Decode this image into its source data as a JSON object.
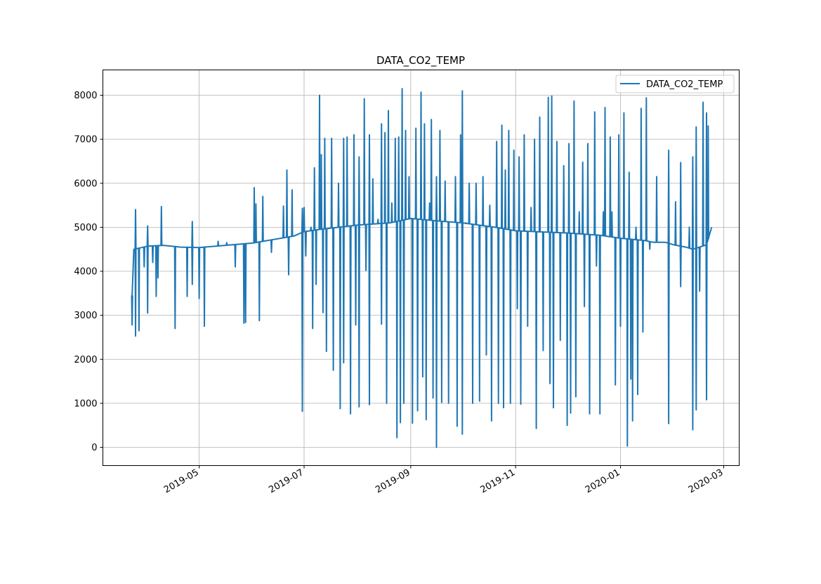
{
  "chart_data": {
    "type": "line",
    "title": "DATA_CO2_TEMP",
    "xlabel": "",
    "ylabel": "",
    "grid": true,
    "legend": {
      "entries": [
        "DATA_CO2_TEMP"
      ],
      "placement": "top-right"
    },
    "xlim": [
      "2019-03-06",
      "2020-03-10"
    ],
    "ylim": [
      -415,
      8575
    ],
    "x_ticks": [
      {
        "date": "2019-05-01",
        "label": "2019-05"
      },
      {
        "date": "2019-07-01",
        "label": "2019-07"
      },
      {
        "date": "2019-09-01",
        "label": "2019-09"
      },
      {
        "date": "2019-11-01",
        "label": "2019-11"
      },
      {
        "date": "2020-01-01",
        "label": "2020-01"
      },
      {
        "date": "2020-03-01",
        "label": "2020-03"
      }
    ],
    "y_ticks": [
      0,
      1000,
      2000,
      3000,
      4000,
      5000,
      6000,
      7000,
      8000
    ],
    "series": [
      {
        "name": "DATA_CO2_TEMP",
        "color": "#1f77b4",
        "baseline": [
          [
            "2019-03-23",
            3450
          ],
          [
            "2019-03-24",
            4500
          ],
          [
            "2019-04-01",
            4570
          ],
          [
            "2019-04-10",
            4590
          ],
          [
            "2019-04-20",
            4550
          ],
          [
            "2019-05-01",
            4540
          ],
          [
            "2019-06-01",
            4640
          ],
          [
            "2019-06-25",
            4800
          ],
          [
            "2019-07-01",
            4900
          ],
          [
            "2019-07-10",
            4950
          ],
          [
            "2019-08-01",
            5050
          ],
          [
            "2019-08-20",
            5100
          ],
          [
            "2019-09-01",
            5200
          ],
          [
            "2019-09-15",
            5150
          ],
          [
            "2019-10-01",
            5100
          ],
          [
            "2019-10-20",
            5000
          ],
          [
            "2019-11-01",
            4920
          ],
          [
            "2019-12-01",
            4870
          ],
          [
            "2019-12-20",
            4820
          ],
          [
            "2020-01-01",
            4750
          ],
          [
            "2020-01-15",
            4700
          ],
          [
            "2020-01-20",
            4660
          ],
          [
            "2020-01-27",
            4660
          ],
          [
            "2020-02-01",
            4600
          ],
          [
            "2020-02-08",
            4550
          ],
          [
            "2020-02-12",
            4500
          ],
          [
            "2020-02-20",
            4600
          ],
          [
            "2020-02-23",
            5000
          ]
        ],
        "spikes": [
          [
            "2019-03-23",
            2780
          ],
          [
            "2019-03-25",
            5400
          ],
          [
            "2019-03-25",
            2530
          ],
          [
            "2019-03-27",
            2650
          ],
          [
            "2019-03-30",
            4100
          ],
          [
            "2019-04-01",
            5030
          ],
          [
            "2019-04-01",
            3050
          ],
          [
            "2019-04-04",
            4200
          ],
          [
            "2019-04-06",
            3430
          ],
          [
            "2019-04-07",
            3850
          ],
          [
            "2019-04-09",
            5470
          ],
          [
            "2019-04-17",
            2700
          ],
          [
            "2019-04-24",
            3430
          ],
          [
            "2019-04-27",
            5130
          ],
          [
            "2019-04-27",
            3700
          ],
          [
            "2019-05-01",
            3380
          ],
          [
            "2019-05-04",
            2750
          ],
          [
            "2019-05-12",
            4680
          ],
          [
            "2019-05-17",
            4650
          ],
          [
            "2019-05-22",
            4100
          ],
          [
            "2019-05-27",
            2820
          ],
          [
            "2019-05-28",
            2840
          ],
          [
            "2019-06-02",
            5900
          ],
          [
            "2019-06-03",
            5530
          ],
          [
            "2019-06-05",
            2880
          ],
          [
            "2019-06-07",
            5700
          ],
          [
            "2019-06-12",
            4430
          ],
          [
            "2019-06-19",
            5480
          ],
          [
            "2019-06-21",
            6300
          ],
          [
            "2019-06-22",
            3920
          ],
          [
            "2019-06-24",
            5850
          ],
          [
            "2019-06-30",
            5430
          ],
          [
            "2019-06-30",
            820
          ],
          [
            "2019-07-01",
            5450
          ],
          [
            "2019-07-02",
            4350
          ],
          [
            "2019-07-05",
            5000
          ],
          [
            "2019-07-06",
            2700
          ],
          [
            "2019-07-07",
            6350
          ],
          [
            "2019-07-08",
            3700
          ],
          [
            "2019-07-10",
            8000
          ],
          [
            "2019-07-11",
            6650
          ],
          [
            "2019-07-12",
            3060
          ],
          [
            "2019-07-13",
            7020
          ],
          [
            "2019-07-14",
            2180
          ],
          [
            "2019-07-17",
            7020
          ],
          [
            "2019-07-18",
            1750
          ],
          [
            "2019-07-21",
            6000
          ],
          [
            "2019-07-22",
            880
          ],
          [
            "2019-07-24",
            7020
          ],
          [
            "2019-07-24",
            1920
          ],
          [
            "2019-07-26",
            7050
          ],
          [
            "2019-07-28",
            760
          ],
          [
            "2019-07-30",
            7100
          ],
          [
            "2019-07-31",
            2780
          ],
          [
            "2019-08-02",
            6600
          ],
          [
            "2019-08-02",
            920
          ],
          [
            "2019-08-05",
            7920
          ],
          [
            "2019-08-06",
            4020
          ],
          [
            "2019-08-08",
            7100
          ],
          [
            "2019-08-08",
            970
          ],
          [
            "2019-08-10",
            6100
          ],
          [
            "2019-08-13",
            5180
          ],
          [
            "2019-08-15",
            7350
          ],
          [
            "2019-08-15",
            2800
          ],
          [
            "2019-08-17",
            7150
          ],
          [
            "2019-08-18",
            1000
          ],
          [
            "2019-08-19",
            7650
          ],
          [
            "2019-08-21",
            5550
          ],
          [
            "2019-08-23",
            7020
          ],
          [
            "2019-08-24",
            220
          ],
          [
            "2019-08-25",
            7050
          ],
          [
            "2019-08-26",
            560
          ],
          [
            "2019-08-27",
            8150
          ],
          [
            "2019-08-28",
            1000
          ],
          [
            "2019-08-29",
            7200
          ],
          [
            "2019-08-31",
            6150
          ],
          [
            "2019-09-02",
            550
          ],
          [
            "2019-09-04",
            7250
          ],
          [
            "2019-09-05",
            830
          ],
          [
            "2019-09-07",
            8070
          ],
          [
            "2019-09-08",
            1600
          ],
          [
            "2019-09-09",
            7350
          ],
          [
            "2019-09-10",
            630
          ],
          [
            "2019-09-12",
            5550
          ],
          [
            "2019-09-13",
            7450
          ],
          [
            "2019-09-14",
            1120
          ],
          [
            "2019-09-16",
            6150
          ],
          [
            "2019-09-16",
            0
          ],
          [
            "2019-09-18",
            7200
          ],
          [
            "2019-09-19",
            1020
          ],
          [
            "2019-09-21",
            6050
          ],
          [
            "2019-09-23",
            1000
          ],
          [
            "2019-09-27",
            6150
          ],
          [
            "2019-09-28",
            480
          ],
          [
            "2019-09-30",
            7100
          ],
          [
            "2019-10-01",
            8100
          ],
          [
            "2019-10-01",
            300
          ],
          [
            "2019-10-03",
            5100
          ],
          [
            "2019-10-05",
            6000
          ],
          [
            "2019-10-07",
            1000
          ],
          [
            "2019-10-09",
            6000
          ],
          [
            "2019-10-11",
            1050
          ],
          [
            "2019-10-13",
            6150
          ],
          [
            "2019-10-15",
            2100
          ],
          [
            "2019-10-17",
            5500
          ],
          [
            "2019-10-18",
            600
          ],
          [
            "2019-10-21",
            6950
          ],
          [
            "2019-10-22",
            1000
          ],
          [
            "2019-10-24",
            7320
          ],
          [
            "2019-10-25",
            900
          ],
          [
            "2019-10-26",
            6300
          ],
          [
            "2019-10-28",
            7200
          ],
          [
            "2019-10-29",
            1000
          ],
          [
            "2019-10-31",
            6750
          ],
          [
            "2019-11-02",
            3150
          ],
          [
            "2019-11-03",
            6600
          ],
          [
            "2019-11-04",
            980
          ],
          [
            "2019-11-06",
            7100
          ],
          [
            "2019-11-08",
            2750
          ],
          [
            "2019-11-10",
            5450
          ],
          [
            "2019-11-12",
            7000
          ],
          [
            "2019-11-13",
            430
          ],
          [
            "2019-11-15",
            7500
          ],
          [
            "2019-11-17",
            2200
          ],
          [
            "2019-11-20",
            7950
          ],
          [
            "2019-11-21",
            1450
          ],
          [
            "2019-11-22",
            7980
          ],
          [
            "2019-11-23",
            900
          ],
          [
            "2019-11-25",
            6950
          ],
          [
            "2019-11-27",
            2430
          ],
          [
            "2019-11-29",
            6400
          ],
          [
            "2019-12-01",
            500
          ],
          [
            "2019-12-02",
            6900
          ],
          [
            "2019-12-03",
            780
          ],
          [
            "2019-12-05",
            7870
          ],
          [
            "2019-12-06",
            1150
          ],
          [
            "2019-12-08",
            5350
          ],
          [
            "2019-12-10",
            6480
          ],
          [
            "2019-12-11",
            3200
          ],
          [
            "2019-12-13",
            6900
          ],
          [
            "2019-12-14",
            760
          ],
          [
            "2019-12-17",
            7620
          ],
          [
            "2019-12-18",
            4120
          ],
          [
            "2019-12-20",
            760
          ],
          [
            "2019-12-22",
            5350
          ],
          [
            "2019-12-23",
            7720
          ],
          [
            "2019-12-26",
            7050
          ],
          [
            "2019-12-27",
            5350
          ],
          [
            "2019-12-29",
            1420
          ],
          [
            "2019-12-31",
            7100
          ],
          [
            "2020-01-01",
            2750
          ],
          [
            "2020-01-03",
            7600
          ],
          [
            "2020-01-05",
            30
          ],
          [
            "2020-01-06",
            6250
          ],
          [
            "2020-01-07",
            1550
          ],
          [
            "2020-01-08",
            600
          ],
          [
            "2020-01-10",
            5000
          ],
          [
            "2020-01-11",
            1200
          ],
          [
            "2020-01-13",
            7700
          ],
          [
            "2020-01-14",
            2620
          ],
          [
            "2020-01-16",
            7940
          ],
          [
            "2020-01-18",
            4500
          ],
          [
            "2020-01-22",
            6150
          ],
          [
            "2020-01-29",
            6750
          ],
          [
            "2020-01-29",
            540
          ],
          [
            "2020-02-02",
            5580
          ],
          [
            "2020-02-05",
            6470
          ],
          [
            "2020-02-05",
            3650
          ],
          [
            "2020-02-10",
            5000
          ],
          [
            "2020-02-12",
            6600
          ],
          [
            "2020-02-12",
            400
          ],
          [
            "2020-02-14",
            7280
          ],
          [
            "2020-02-14",
            850
          ],
          [
            "2020-02-16",
            3550
          ],
          [
            "2020-02-18",
            7840
          ],
          [
            "2020-02-20",
            7600
          ],
          [
            "2020-02-20",
            1080
          ],
          [
            "2020-02-21",
            7300
          ]
        ]
      }
    ]
  }
}
